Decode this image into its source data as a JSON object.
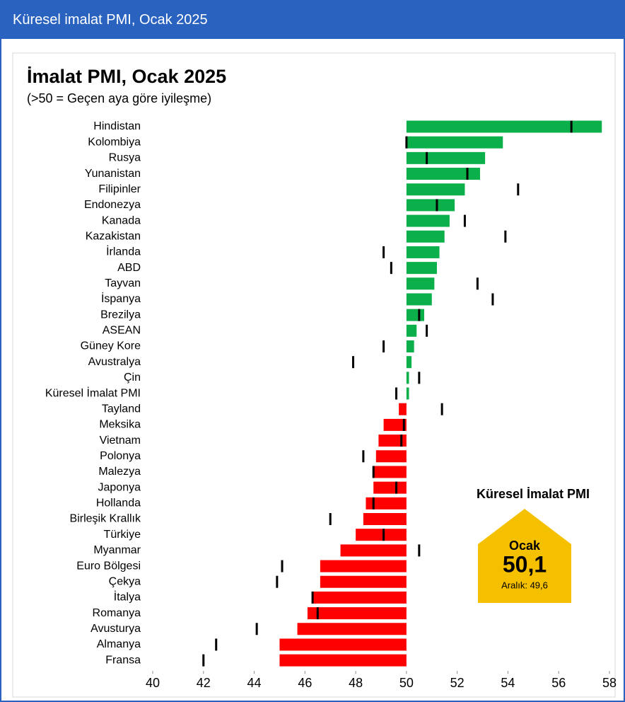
{
  "header": {
    "title": "Küresel imalat PMI, Ocak 2025"
  },
  "chart_data": {
    "type": "bar",
    "orientation": "horizontal",
    "title": "İmalat PMI, Ocak 2025",
    "subtitle": "(>50 = Geçen aya göre iyileşme)",
    "categories": [
      "Hindistan",
      "Kolombiya",
      "Rusya",
      "Yunanistan",
      "Filipinler",
      "Endonezya",
      "Kanada",
      "Kazakistan",
      "İrlanda",
      "ABD",
      "Tayvan",
      "İspanya",
      "Brezilya",
      "ASEAN",
      "Güney Kore",
      "Avustralya",
      "Çin",
      "Küresel İmalat PMI",
      "Tayland",
      "Meksika",
      "Vietnam",
      "Polonya",
      "Malezya",
      "Japonya",
      "Hollanda",
      "Birleşik Krallık",
      "Türkiye",
      "Myanmar",
      "Euro Bölgesi",
      "Çekya",
      "İtalya",
      "Romanya",
      "Avusturya",
      "Almanya",
      "Fransa"
    ],
    "values": [
      57.7,
      53.8,
      53.1,
      52.9,
      52.3,
      51.9,
      51.7,
      51.5,
      51.3,
      51.2,
      51.1,
      51.0,
      50.7,
      50.4,
      50.3,
      50.2,
      50.1,
      50.1,
      49.7,
      49.1,
      48.9,
      48.8,
      48.7,
      48.7,
      48.4,
      48.3,
      48.0,
      47.4,
      46.6,
      46.6,
      46.3,
      46.1,
      45.7,
      45.0,
      45.0
    ],
    "previous_values": [
      56.5,
      50.0,
      50.8,
      52.4,
      54.4,
      51.2,
      52.3,
      53.9,
      49.1,
      49.4,
      52.8,
      53.4,
      50.5,
      50.8,
      49.1,
      47.9,
      50.5,
      49.6,
      51.4,
      49.9,
      49.8,
      48.3,
      48.7,
      49.6,
      48.7,
      47.0,
      49.1,
      50.5,
      45.1,
      44.9,
      46.3,
      46.5,
      44.1,
      42.5,
      42.0
    ],
    "baseline": 50,
    "color_above": "#0bb04b",
    "color_below": "#ff0000",
    "previous_color": "#000000",
    "xlim": [
      40,
      58
    ],
    "xticks": [
      40,
      42,
      44,
      46,
      48,
      50,
      52,
      54,
      56,
      58
    ],
    "inset": {
      "title": "Küresel İmalat PMI",
      "month": "Ocak",
      "value": "50,1",
      "previous": "Aralık: 49,6",
      "color": "#f5c000"
    }
  }
}
